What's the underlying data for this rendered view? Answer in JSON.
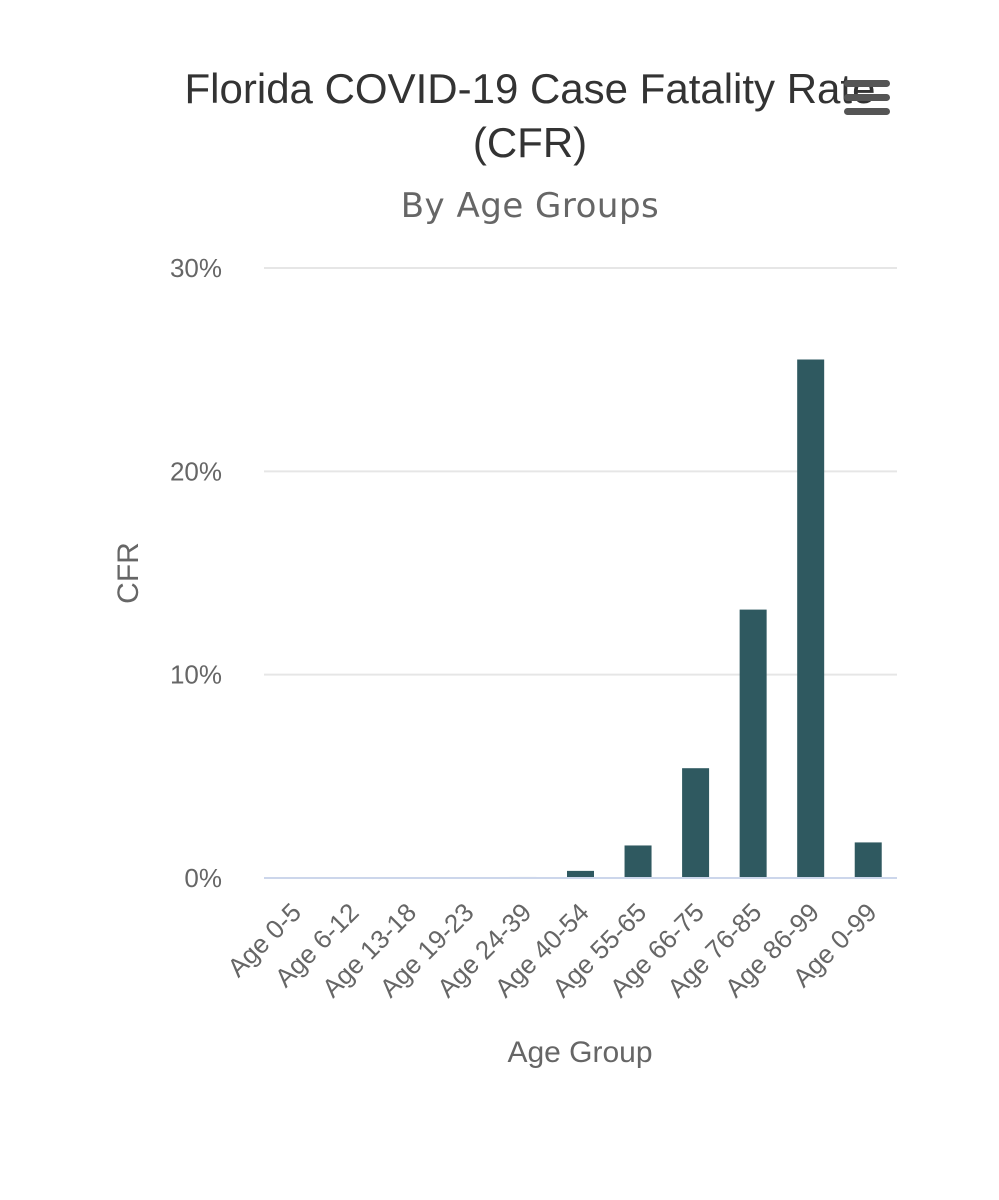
{
  "chart_data": {
    "type": "bar",
    "title": "Florida COVID-19 Case Fatality Rate (CFR)",
    "subtitle": "By Age Groups",
    "xlabel": "Age Group",
    "ylabel": "CFR",
    "categories": [
      "Age 0-5",
      "Age 6-12",
      "Age 13-18",
      "Age 19-23",
      "Age 24-39",
      "Age 40-54",
      "Age 55-65",
      "Age 66-75",
      "Age 76-85",
      "Age 86-99",
      "Age 0-99"
    ],
    "values": [
      0,
      0,
      0,
      0,
      0.05,
      0.35,
      1.6,
      5.4,
      13.2,
      25.5,
      1.75
    ],
    "ylim": [
      0,
      30
    ],
    "yticks": [
      0,
      10,
      20,
      30
    ],
    "ytick_labels": [
      "0%",
      "10%",
      "20%",
      "30%"
    ],
    "grid": true,
    "legend": "none",
    "colors": {
      "bar": "#2f5960",
      "grid": "#e6e6e6",
      "baseline": "#ccd6eb",
      "title": "#333333",
      "label": "#666666"
    }
  },
  "toolbar": {
    "menu_icon": "hamburger-menu-icon"
  }
}
